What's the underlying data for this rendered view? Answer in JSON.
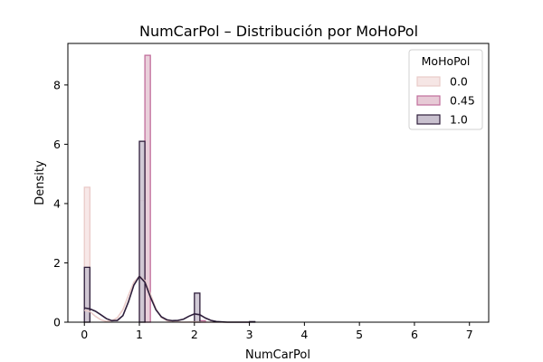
{
  "chart_data": {
    "type": "histogram",
    "title": "NumCarPol – Distribución por MoHoPol",
    "xlabel": "NumCarPol",
    "ylabel": "Density",
    "xlim": [
      -0.3,
      7.35
    ],
    "ylim": [
      0,
      9.4
    ],
    "xticks": [
      0,
      1,
      2,
      3,
      4,
      5,
      6,
      7
    ],
    "yticks": [
      0,
      2,
      4,
      6,
      8
    ],
    "bin_width": 0.1,
    "legend": {
      "title": "MoHoPol",
      "placement": "top-right"
    },
    "series": [
      {
        "name": "0.0",
        "fill": "#f6e6e5",
        "stroke": "#eacbc9",
        "bars": [
          {
            "x0": 0.0,
            "x1": 0.1,
            "density": 4.55
          },
          {
            "x0": 1.0,
            "x1": 1.1,
            "density": 4.1
          },
          {
            "x0": 2.0,
            "x1": 2.1,
            "density": 0.05
          }
        ],
        "kde": [
          [
            0,
            0.4
          ],
          [
            0.1,
            0.36
          ],
          [
            0.2,
            0.2
          ],
          [
            0.3,
            0.08
          ],
          [
            0.4,
            0.03
          ],
          [
            0.5,
            0.05
          ],
          [
            0.6,
            0.15
          ],
          [
            0.7,
            0.42
          ],
          [
            0.8,
            0.9
          ],
          [
            0.9,
            1.35
          ],
          [
            1.0,
            1.55
          ],
          [
            1.1,
            1.4
          ],
          [
            1.2,
            0.95
          ],
          [
            1.3,
            0.45
          ],
          [
            1.4,
            0.16
          ],
          [
            1.5,
            0.05
          ],
          [
            1.6,
            0.02
          ],
          [
            1.7,
            0.01
          ],
          [
            1.8,
            0.0
          ],
          [
            2.0,
            0.01
          ],
          [
            2.2,
            0.0
          ],
          [
            3,
            0.0
          ]
        ]
      },
      {
        "name": "0.45",
        "fill": "#e7cad6",
        "stroke": "#c16e9c",
        "bars": [
          {
            "x0": 1.1,
            "x1": 1.2,
            "density": 9.0
          },
          {
            "x0": 2.1,
            "x1": 2.2,
            "density": 0.05
          }
        ],
        "kde": []
      },
      {
        "name": "1.0",
        "fill": "#c9c1cf",
        "stroke": "#2e1e3b",
        "bars": [
          {
            "x0": 0.0,
            "x1": 0.1,
            "density": 1.85
          },
          {
            "x0": 1.0,
            "x1": 1.1,
            "density": 6.1
          },
          {
            "x0": 2.0,
            "x1": 2.1,
            "density": 0.98
          },
          {
            "x0": 3.0,
            "x1": 3.1,
            "density": 0.02
          }
        ],
        "kde": [
          [
            0,
            0.48
          ],
          [
            0.1,
            0.45
          ],
          [
            0.2,
            0.37
          ],
          [
            0.3,
            0.25
          ],
          [
            0.4,
            0.12
          ],
          [
            0.5,
            0.05
          ],
          [
            0.6,
            0.06
          ],
          [
            0.7,
            0.22
          ],
          [
            0.8,
            0.68
          ],
          [
            0.9,
            1.25
          ],
          [
            1.0,
            1.55
          ],
          [
            1.1,
            1.35
          ],
          [
            1.2,
            0.85
          ],
          [
            1.3,
            0.42
          ],
          [
            1.4,
            0.18
          ],
          [
            1.5,
            0.08
          ],
          [
            1.6,
            0.05
          ],
          [
            1.7,
            0.06
          ],
          [
            1.8,
            0.1
          ],
          [
            1.9,
            0.2
          ],
          [
            2.0,
            0.28
          ],
          [
            2.1,
            0.25
          ],
          [
            2.2,
            0.14
          ],
          [
            2.3,
            0.06
          ],
          [
            2.4,
            0.02
          ],
          [
            2.5,
            0.01
          ],
          [
            2.6,
            0.0
          ],
          [
            3.0,
            0.0
          ]
        ]
      }
    ]
  }
}
